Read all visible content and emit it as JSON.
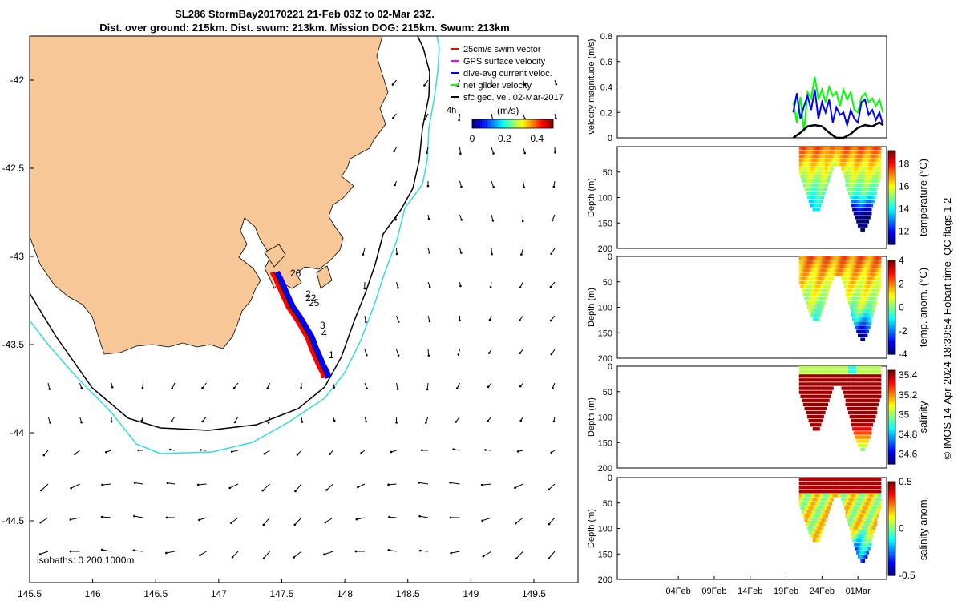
{
  "title": {
    "line1": "SL286 StormBay20170221 21-Feb 03Z to 02-Mar 23Z.",
    "line2": "Dist. over ground: 215km. Dist. swum: 213km. Mission DOG: 215km. Swum: 213km"
  },
  "colors": {
    "land": "#f7c797",
    "track_red": "#ff0000",
    "dive_blue": "#0000ff",
    "net_green": "#00ff00",
    "gps_magenta": "#ff00ff",
    "isobath_200": "#000000",
    "isobath_1000": "#33dddd"
  },
  "chart_data": [
    {
      "type": "scatter",
      "name": "map",
      "xlim": [
        145.5,
        149.85
      ],
      "ylim": [
        -44.85,
        -41.75
      ],
      "xticks": [
        "145.5",
        "146",
        "146.5",
        "147",
        "147.5",
        "148",
        "148.5",
        "149",
        "149.5"
      ],
      "yticks": [
        "-42",
        "-42.5",
        "-43",
        "-43.5",
        "-44",
        "-44.5"
      ],
      "legend": {
        "position": "top-right",
        "items": [
          {
            "label": "25cm/s swim vector",
            "color": "#ff0000"
          },
          {
            "label": "GPS surface velocity",
            "color": "#ff00ff"
          },
          {
            "label": "dive-avg current veloc.",
            "color": "#0000ff"
          },
          {
            "label": "net glider velocity",
            "color": "#00ff00"
          },
          {
            "label": "sfc geo. vel. 02-Mar-2017",
            "color": "#000000"
          }
        ],
        "extra_label": "4h"
      },
      "colorbar": {
        "label": "(m/s)",
        "ticks": [
          "0",
          "0.2",
          "0.4"
        ],
        "range": [
          0,
          0.5
        ]
      },
      "isobaths_label": "isobaths: 0  200  1000m",
      "track_labels": [
        "26",
        "2",
        "22",
        "25",
        "3",
        "4",
        "1"
      ],
      "track": [
        [
          147.42,
          -43.09
        ],
        [
          147.45,
          -43.13
        ],
        [
          147.48,
          -43.18
        ],
        [
          147.51,
          -43.23
        ],
        [
          147.55,
          -43.29
        ],
        [
          147.6,
          -43.34
        ],
        [
          147.65,
          -43.4
        ],
        [
          147.7,
          -43.46
        ],
        [
          147.73,
          -43.52
        ],
        [
          147.76,
          -43.57
        ],
        [
          147.79,
          -43.62
        ],
        [
          147.82,
          -43.66
        ],
        [
          147.83,
          -43.69
        ]
      ]
    },
    {
      "type": "line",
      "name": "velocity",
      "ylabel": "velocity magnitude (m/s)",
      "ylim": [
        0,
        0.8
      ],
      "yticks": [
        "0",
        "0.2",
        "0.4",
        "0.6",
        "0.8"
      ],
      "series": [
        {
          "color": "#00ff00",
          "x": [
            21.0,
            21.5,
            22.0,
            22.5,
            23.0,
            23.5,
            24.0,
            24.5,
            25.0,
            25.5,
            26.0,
            26.5,
            27.0,
            27.5,
            28.0,
            28.5,
            29.0,
            29.5,
            30.0,
            30.5,
            31.0,
            31.5,
            32.0,
            32.5,
            33.0,
            33.5
          ],
          "values": [
            0.28,
            0.12,
            0.32,
            0.05,
            0.36,
            0.31,
            0.48,
            0.3,
            0.38,
            0.28,
            0.4,
            0.33,
            0.36,
            0.25,
            0.38,
            0.3,
            0.36,
            0.22,
            0.2,
            0.32,
            0.35,
            0.28,
            0.31,
            0.25,
            0.3,
            0.2
          ]
        },
        {
          "color": "#0000ff",
          "x": [
            21.0,
            21.5,
            22.0,
            22.5,
            23.0,
            23.5,
            24.0,
            24.5,
            25.0,
            25.5,
            26.0,
            26.5,
            27.0,
            27.5,
            28.0,
            28.5,
            29.0,
            29.5,
            30.0,
            30.5,
            31.0,
            31.5,
            32.0,
            32.5,
            33.0,
            33.5
          ],
          "values": [
            0.2,
            0.35,
            0.15,
            0.25,
            0.33,
            0.22,
            0.38,
            0.15,
            0.28,
            0.2,
            0.3,
            0.12,
            0.24,
            0.18,
            0.2,
            0.1,
            0.22,
            0.15,
            0.12,
            0.28,
            0.3,
            0.18,
            0.22,
            0.14,
            0.2,
            0.1
          ]
        },
        {
          "color": "#000000",
          "x": [
            21.0,
            22.0,
            23.0,
            24.0,
            25.0,
            26.0,
            27.0,
            28.0,
            29.0,
            30.0,
            31.0,
            32.0,
            33.0,
            33.5
          ],
          "values": [
            0.0,
            0.04,
            0.09,
            0.1,
            0.09,
            0.04,
            0.0,
            0.0,
            0.03,
            0.08,
            0.1,
            0.09,
            0.12,
            0.1
          ]
        }
      ]
    },
    {
      "type": "heatmap",
      "name": "temperature",
      "ylabel": "Depth (m)",
      "cbar_label": "temperature (°C)",
      "ylim": [
        200,
        0
      ],
      "cticks": [
        "18",
        "16",
        "14",
        "12"
      ],
      "crange": [
        10.8,
        19.2
      ],
      "yticks": [
        "50",
        "100",
        "150",
        "200"
      ]
    },
    {
      "type": "heatmap",
      "name": "temperature anomaly",
      "ylabel": "Depth (m)",
      "cbar_label": "temp. anom. (°C)",
      "ylim": [
        200,
        0
      ],
      "cticks": [
        "4",
        "2",
        "0",
        "-2",
        "-4"
      ],
      "crange": [
        -4,
        4
      ],
      "yticks": [
        "0",
        "50",
        "100",
        "150",
        "200"
      ]
    },
    {
      "type": "heatmap",
      "name": "salinity",
      "ylabel": "Depth (m)",
      "cbar_label": "salinity",
      "ylim": [
        200,
        0
      ],
      "cticks": [
        "35.4",
        "35.2",
        "35",
        "34.8",
        "34.6"
      ],
      "crange": [
        34.5,
        35.45
      ],
      "yticks": [
        "0",
        "50",
        "100",
        "150",
        "200"
      ]
    },
    {
      "type": "heatmap",
      "name": "salinity anomaly",
      "ylabel": "Depth (m)",
      "cbar_label": "salinity anom.",
      "ylim": [
        200,
        0
      ],
      "cticks": [
        "0.5",
        "0",
        "-0.5"
      ],
      "crange": [
        -0.5,
        0.5
      ],
      "yticks": [
        "0",
        "50",
        "100",
        "150",
        "200"
      ],
      "xticks": [
        "04Feb",
        "09Feb",
        "14Feb",
        "19Feb",
        "24Feb",
        "01Mar"
      ]
    }
  ],
  "footer": "© IMOS 14-Apr-2024 18:39:54 Hobart time. QC flags 1  2"
}
